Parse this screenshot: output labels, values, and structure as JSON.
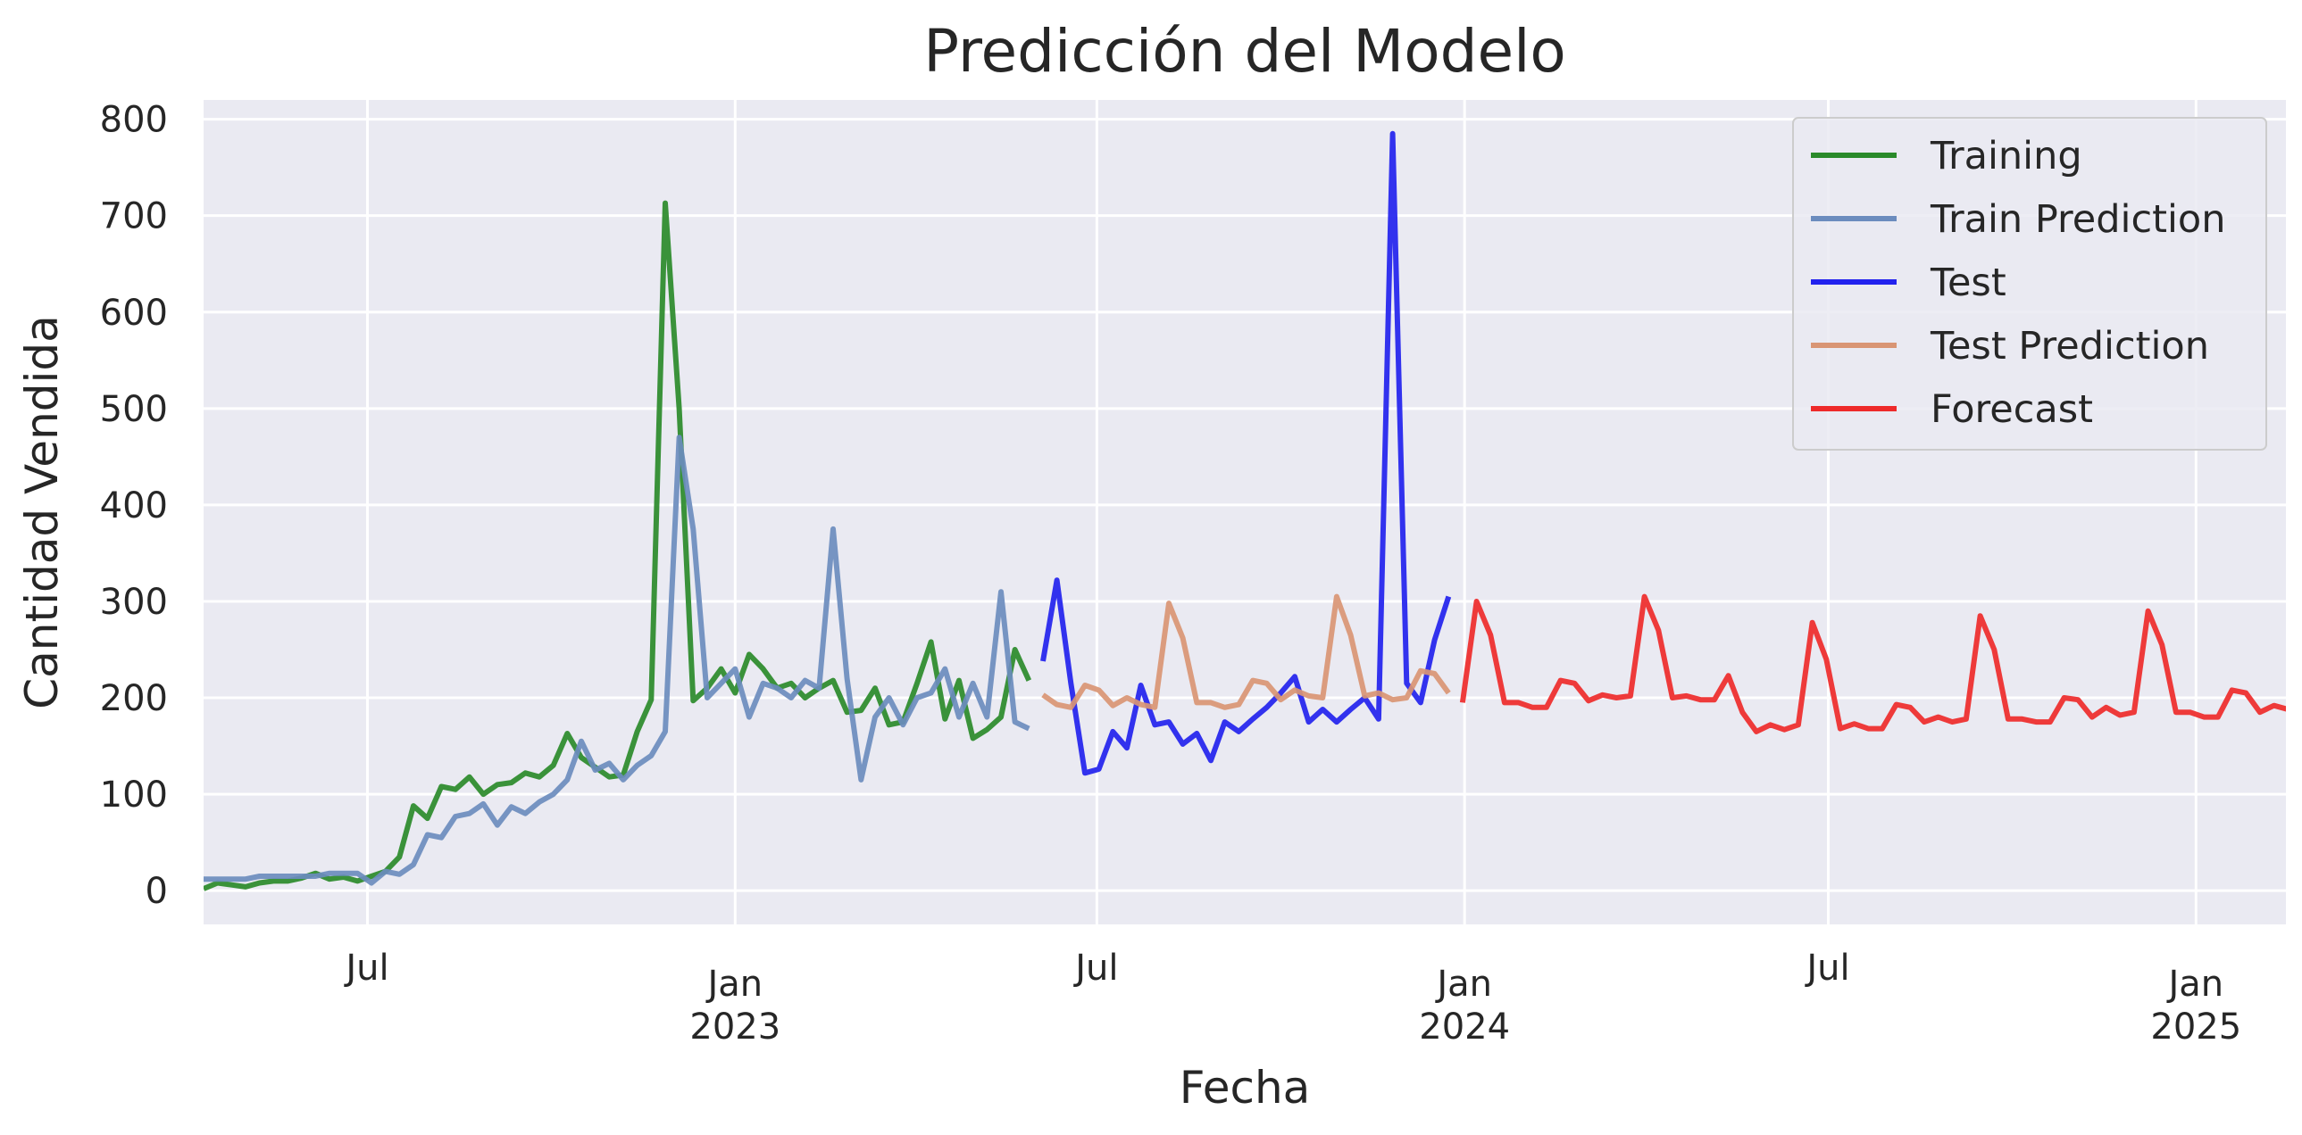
{
  "chart_data": {
    "type": "line",
    "title": "Predicción del Modelo",
    "xlabel": "Fecha",
    "ylabel": "Cantidad Vendida",
    "xlim": [
      "2022-04-10",
      "2025-02-15"
    ],
    "ylim": [
      -35,
      820
    ],
    "grid": true,
    "legend": "top-right",
    "y_ticks": [
      0,
      100,
      200,
      300,
      400,
      500,
      600,
      700,
      800
    ],
    "x_ticks": [
      {
        "date": "2022-07-01",
        "label": "Jul",
        "sublabel": ""
      },
      {
        "date": "2023-01-01",
        "label": "Jan",
        "sublabel": "2023"
      },
      {
        "date": "2023-07-01",
        "label": "Jul",
        "sublabel": ""
      },
      {
        "date": "2024-01-01",
        "label": "Jan",
        "sublabel": "2024"
      },
      {
        "date": "2024-07-01",
        "label": "Jul",
        "sublabel": ""
      },
      {
        "date": "2025-01-01",
        "label": "Jan",
        "sublabel": "2025"
      }
    ],
    "series": [
      {
        "name": "Training",
        "color": "#2a8a2a",
        "x": [
          "2022-04-10",
          "2022-04-17",
          "2022-04-24",
          "2022-05-01",
          "2022-05-08",
          "2022-05-15",
          "2022-05-22",
          "2022-05-29",
          "2022-06-05",
          "2022-06-12",
          "2022-06-19",
          "2022-06-26",
          "2022-07-03",
          "2022-07-10",
          "2022-07-17",
          "2022-07-24",
          "2022-07-31",
          "2022-08-07",
          "2022-08-14",
          "2022-08-21",
          "2022-08-28",
          "2022-09-04",
          "2022-09-11",
          "2022-09-18",
          "2022-09-25",
          "2022-10-02",
          "2022-10-09",
          "2022-10-16",
          "2022-10-23",
          "2022-10-30",
          "2022-11-06",
          "2022-11-13",
          "2022-11-20",
          "2022-11-27",
          "2022-12-04",
          "2022-12-11",
          "2022-12-18",
          "2022-12-25",
          "2023-01-01",
          "2023-01-08",
          "2023-01-15",
          "2023-01-22",
          "2023-01-29",
          "2023-02-05",
          "2023-02-12",
          "2023-02-19",
          "2023-02-26",
          "2023-03-05",
          "2023-03-12",
          "2023-03-19",
          "2023-03-26",
          "2023-04-02",
          "2023-04-09",
          "2023-04-16",
          "2023-04-23",
          "2023-04-30",
          "2023-05-07",
          "2023-05-14",
          "2023-05-21",
          "2023-05-28"
        ],
        "y": [
          2,
          8,
          6,
          4,
          8,
          10,
          10,
          13,
          18,
          12,
          14,
          10,
          15,
          20,
          35,
          88,
          75,
          108,
          105,
          118,
          100,
          110,
          112,
          122,
          118,
          130,
          163,
          138,
          128,
          118,
          120,
          165,
          198,
          713,
          500,
          197,
          210,
          230,
          205,
          245,
          230,
          210,
          215,
          200,
          210,
          218,
          185,
          187,
          210,
          172,
          175,
          215,
          258,
          178,
          218,
          158,
          167,
          180,
          250,
          218
        ]
      },
      {
        "name": "Train Prediction",
        "color": "#6b8cbe",
        "x": [
          "2022-04-10",
          "2022-04-17",
          "2022-04-24",
          "2022-05-01",
          "2022-05-08",
          "2022-05-15",
          "2022-05-22",
          "2022-05-29",
          "2022-06-05",
          "2022-06-12",
          "2022-06-19",
          "2022-06-26",
          "2022-07-03",
          "2022-07-10",
          "2022-07-17",
          "2022-07-24",
          "2022-07-31",
          "2022-08-07",
          "2022-08-14",
          "2022-08-21",
          "2022-08-28",
          "2022-09-04",
          "2022-09-11",
          "2022-09-18",
          "2022-09-25",
          "2022-10-02",
          "2022-10-09",
          "2022-10-16",
          "2022-10-23",
          "2022-10-30",
          "2022-11-06",
          "2022-11-13",
          "2022-11-20",
          "2022-11-27",
          "2022-12-04",
          "2022-12-11",
          "2022-12-18",
          "2022-12-25",
          "2023-01-01",
          "2023-01-08",
          "2023-01-15",
          "2023-01-22",
          "2023-01-29",
          "2023-02-05",
          "2023-02-12",
          "2023-02-19",
          "2023-02-26",
          "2023-03-05",
          "2023-03-12",
          "2023-03-19",
          "2023-03-26",
          "2023-04-02",
          "2023-04-09",
          "2023-04-16",
          "2023-04-23",
          "2023-04-30",
          "2023-05-07",
          "2023-05-14",
          "2023-05-21",
          "2023-05-28"
        ],
        "y": [
          12,
          12,
          12,
          12,
          15,
          15,
          15,
          15,
          15,
          18,
          18,
          18,
          8,
          20,
          17,
          27,
          58,
          55,
          77,
          80,
          90,
          68,
          87,
          80,
          92,
          100,
          115,
          155,
          125,
          132,
          115,
          130,
          140,
          165,
          470,
          375,
          200,
          215,
          230,
          180,
          215,
          210,
          200,
          218,
          210,
          375,
          220,
          115,
          180,
          200,
          172,
          200,
          205,
          230,
          180,
          215,
          180,
          310,
          175,
          168
        ]
      },
      {
        "name": "Test",
        "color": "#2222ee",
        "x": [
          "2023-06-04",
          "2023-06-11",
          "2023-06-18",
          "2023-06-25",
          "2023-07-02",
          "2023-07-09",
          "2023-07-16",
          "2023-07-23",
          "2023-07-30",
          "2023-08-06",
          "2023-08-13",
          "2023-08-20",
          "2023-08-27",
          "2023-09-03",
          "2023-09-10",
          "2023-09-17",
          "2023-09-24",
          "2023-10-01",
          "2023-10-08",
          "2023-10-15",
          "2023-10-22",
          "2023-10-29",
          "2023-11-05",
          "2023-11-12",
          "2023-11-19",
          "2023-11-26",
          "2023-12-03",
          "2023-12-10",
          "2023-12-17",
          "2023-12-24"
        ],
        "y": [
          238,
          322,
          215,
          122,
          126,
          165,
          148,
          213,
          172,
          175,
          152,
          163,
          135,
          175,
          165,
          178,
          190,
          205,
          222,
          175,
          188,
          175,
          188,
          200,
          178,
          785,
          215,
          195,
          260,
          305
        ]
      },
      {
        "name": "Test Prediction",
        "color": "#d99574",
        "x": [
          "2023-06-04",
          "2023-06-11",
          "2023-06-18",
          "2023-06-25",
          "2023-07-02",
          "2023-07-09",
          "2023-07-16",
          "2023-07-23",
          "2023-07-30",
          "2023-08-06",
          "2023-08-13",
          "2023-08-20",
          "2023-08-27",
          "2023-09-03",
          "2023-09-10",
          "2023-09-17",
          "2023-09-24",
          "2023-10-01",
          "2023-10-08",
          "2023-10-15",
          "2023-10-22",
          "2023-10-29",
          "2023-11-05",
          "2023-11-12",
          "2023-11-19",
          "2023-11-26",
          "2023-12-03",
          "2023-12-10",
          "2023-12-17",
          "2023-12-24"
        ],
        "y": [
          203,
          193,
          190,
          213,
          208,
          192,
          200,
          193,
          190,
          298,
          262,
          195,
          195,
          190,
          193,
          218,
          215,
          198,
          208,
          202,
          200,
          305,
          265,
          202,
          205,
          198,
          200,
          228,
          225,
          205
        ]
      },
      {
        "name": "Forecast",
        "color": "#ee2a2a",
        "x": [
          "2023-12-31",
          "2024-01-07",
          "2024-01-14",
          "2024-01-21",
          "2024-01-28",
          "2024-02-04",
          "2024-02-11",
          "2024-02-18",
          "2024-02-25",
          "2024-03-03",
          "2024-03-10",
          "2024-03-17",
          "2024-03-24",
          "2024-03-31",
          "2024-04-07",
          "2024-04-14",
          "2024-04-21",
          "2024-04-28",
          "2024-05-05",
          "2024-05-12",
          "2024-05-19",
          "2024-05-26",
          "2024-06-02",
          "2024-06-09",
          "2024-06-16",
          "2024-06-23",
          "2024-06-30",
          "2024-07-07",
          "2024-07-14",
          "2024-07-21",
          "2024-07-28",
          "2024-08-04",
          "2024-08-11",
          "2024-08-18",
          "2024-08-25",
          "2024-09-01",
          "2024-09-08",
          "2024-09-15",
          "2024-09-22",
          "2024-09-29",
          "2024-10-06",
          "2024-10-13",
          "2024-10-20",
          "2024-10-27",
          "2024-11-03",
          "2024-11-10",
          "2024-11-17",
          "2024-11-24",
          "2024-12-01",
          "2024-12-08",
          "2024-12-15",
          "2024-12-22",
          "2024-12-29",
          "2025-01-05",
          "2025-01-12",
          "2025-01-19",
          "2025-01-26",
          "2025-02-02",
          "2025-02-09",
          "2025-02-16"
        ],
        "y": [
          195,
          300,
          265,
          195,
          195,
          190,
          190,
          218,
          215,
          197,
          203,
          200,
          202,
          305,
          270,
          200,
          202,
          198,
          198,
          223,
          185,
          165,
          172,
          167,
          172,
          278,
          240,
          168,
          173,
          168,
          168,
          193,
          190,
          175,
          180,
          175,
          178,
          285,
          250,
          178,
          178,
          175,
          175,
          200,
          198,
          180,
          190,
          182,
          185,
          290,
          255,
          185,
          185,
          180,
          180,
          208,
          205,
          185,
          192,
          188
        ]
      }
    ]
  }
}
